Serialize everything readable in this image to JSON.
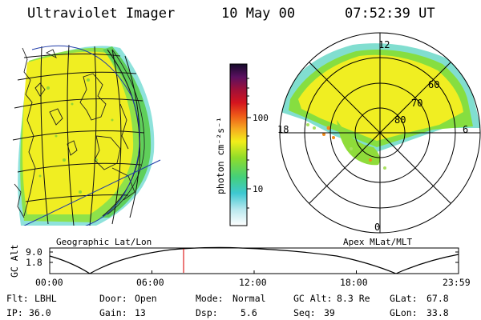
{
  "header": {
    "title": "Ultraviolet Imager",
    "date": "10 May 00",
    "time": "07:52:39 UT"
  },
  "colorbar": {
    "label": "photon cm⁻²s⁻¹",
    "ticks": [
      "100",
      "10"
    ]
  },
  "polar": {
    "mlt_labels": [
      "12",
      "18",
      "6",
      "0"
    ],
    "lat_labels": [
      "60",
      "70",
      "80"
    ]
  },
  "panel_labels": {
    "left": "Geographic Lat/Lon",
    "right": "Apex MLat/MLT"
  },
  "altitude_plot": {
    "ylabel": "GC Alt",
    "yticks": [
      "9.0",
      "1.8"
    ],
    "xticks": [
      "00:00",
      "06:00",
      "12:00",
      "18:00",
      "23:59"
    ],
    "marker_time": "07:52"
  },
  "info": {
    "flt_label": "Flt:",
    "flt_value": "LBHL",
    "door_label": "Door:",
    "door_value": "Open",
    "mode_label": "Mode:",
    "mode_value": "Normal",
    "gcalt_label": "GC Alt:",
    "gcalt_value": "8.3 Re",
    "glat_label": "GLat:",
    "glat_value": "67.8",
    "ip_label": "IP:",
    "ip_value": "36.0",
    "gain_label": "Gain:",
    "gain_value": "13",
    "dsp_label": "Dsp:",
    "dsp_value": "5.6",
    "seq_label": "Seq:",
    "seq_value": "39",
    "glon_label": "GLon:",
    "glon_value": "33.8"
  },
  "colors": {
    "yellow": "#f0ee20",
    "green": "#7ed83a",
    "cyan": "#4fd6c8",
    "orange": "#f08a1a",
    "marker": "#e02020"
  }
}
